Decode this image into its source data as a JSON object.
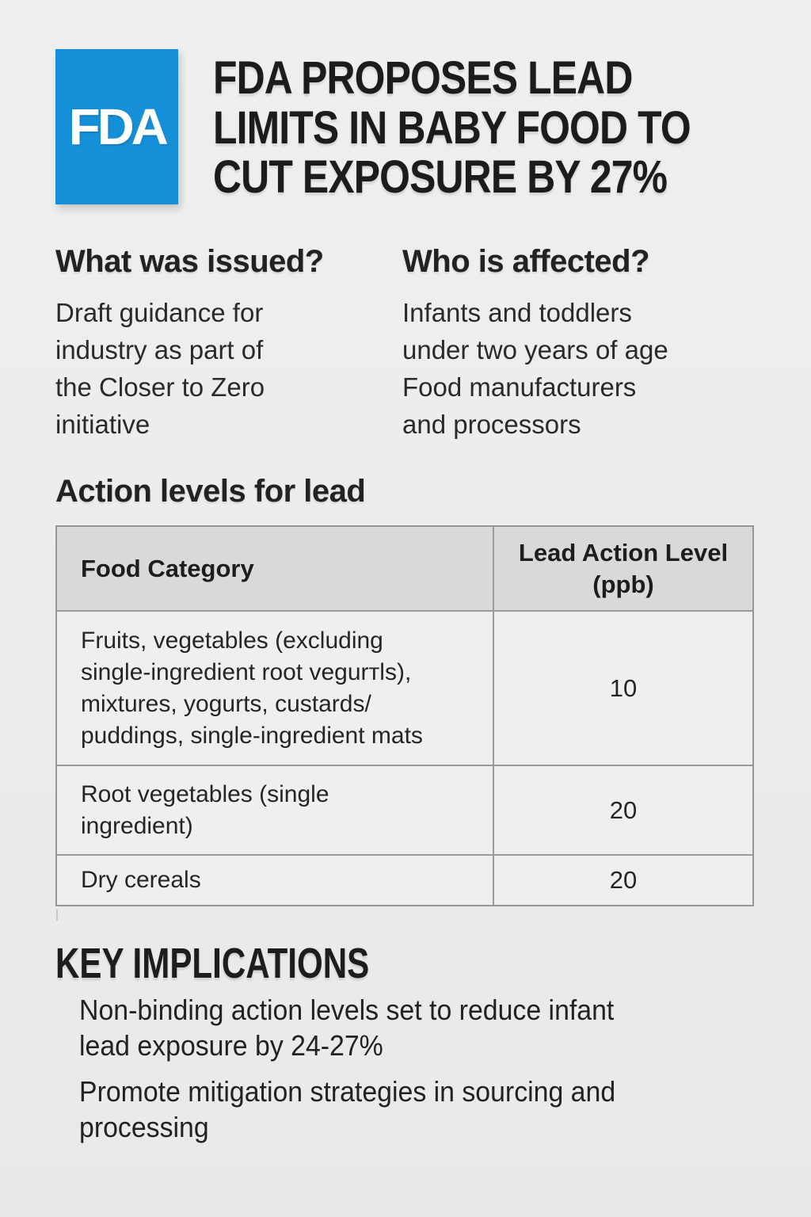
{
  "colors": {
    "page_background": "#ededed",
    "fda_blue": "#1590d8",
    "text": "#1e1e1e",
    "table_header_background": "#d9d9d9",
    "table_border": "#9b9b9b"
  },
  "logo": {
    "text": "FDA"
  },
  "title": {
    "lines": [
      "FDA PROPOSES LEAD",
      "LIMITS IN BABY FOOD TO",
      "CUT EXPOSURE BY 27%"
    ]
  },
  "qa_columns": [
    {
      "heading": "What was issued?",
      "lines": [
        "Draft guidance for",
        "industry as part of",
        "the Closer to Zero",
        "initiative"
      ]
    },
    {
      "heading": "Who is affected?",
      "lines": [
        "Infants and toddlers",
        "under two years of age",
        "Food manufacturers",
        "and processors"
      ]
    }
  ],
  "action_levels": {
    "heading": "Action levels for lead",
    "table": {
      "col1_header": "Food Category",
      "col2_header_lines": [
        "Lead Action Level",
        "(ppb)"
      ],
      "rows": [
        {
          "category_lines": [
            "Fruits, vegetables (excluding",
            "single-ingredient root vegurтls),",
            "mixtures, yogurts, custards/",
            "puddings, single-ingredient mats"
          ],
          "value": "10"
        },
        {
          "category_lines": [
            "Root vegetables (single",
            "ingredient)"
          ],
          "value": "20"
        },
        {
          "category_lines": [
            "Dry cereals"
          ],
          "value": "20"
        }
      ]
    }
  },
  "implications": {
    "heading": "KEY IMPLICATIONS",
    "items": [
      {
        "lines": [
          "Non-binding action levels set to reduce infant",
          "lead exposure by 24-27%"
        ]
      },
      {
        "lines": [
          "Promote mitigation strategies in sourcing and",
          "processing"
        ]
      }
    ]
  }
}
